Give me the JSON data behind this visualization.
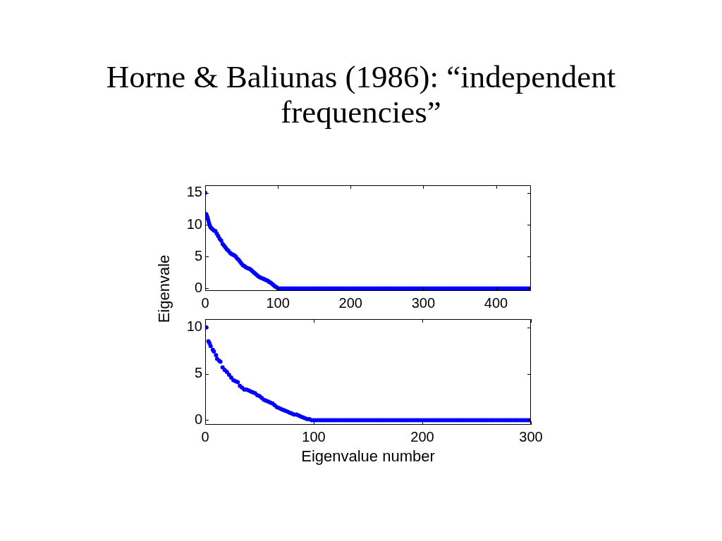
{
  "chart_data": [
    {
      "type": "scatter",
      "title": "Horne & Baliunas (1986): “independent frequencies”",
      "ylabel": "Eigenvale",
      "color": "#0000ff",
      "marker": "circle",
      "x": [
        0,
        1,
        2,
        3,
        4,
        5,
        6,
        7,
        8,
        10,
        12,
        14,
        16,
        18,
        20,
        22,
        24,
        26,
        28,
        30,
        32,
        34,
        36,
        38,
        40,
        42,
        44,
        46,
        48,
        50,
        52,
        54,
        56,
        58,
        60,
        62,
        64,
        66,
        68,
        70,
        72,
        74,
        76,
        78,
        80,
        82,
        84,
        86,
        88,
        90,
        92,
        94,
        96,
        98,
        100,
        103,
        106,
        109,
        112,
        115,
        118,
        121,
        124,
        127,
        130,
        133,
        136,
        139,
        142,
        145,
        148,
        151,
        154,
        157,
        160,
        163,
        166,
        169,
        172,
        175,
        178,
        181,
        184,
        187,
        190,
        193,
        196,
        199,
        202,
        205,
        208,
        211,
        214,
        217,
        220,
        223,
        226,
        229,
        232,
        235,
        238,
        241,
        244,
        247,
        250,
        253,
        256,
        259,
        262,
        265,
        268,
        271,
        274,
        277,
        280,
        283,
        286,
        289,
        292,
        295,
        298,
        301,
        304,
        307,
        310,
        313,
        316,
        319,
        322,
        325,
        328,
        331,
        334,
        337,
        340,
        343,
        346,
        349,
        352,
        355,
        358,
        361,
        364,
        367,
        370,
        373,
        376,
        379,
        382,
        385,
        388,
        391,
        394,
        397,
        400,
        403,
        406,
        409,
        412,
        415,
        418,
        421,
        424,
        427,
        430,
        433,
        436,
        439,
        442,
        445,
        448
      ],
      "values": [
        15.0,
        11.7,
        11.5,
        11.2,
        10.8,
        10.4,
        10.0,
        9.7,
        9.5,
        9.3,
        9.1,
        9.0,
        8.6,
        8.2,
        7.8,
        7.5,
        7.0,
        6.7,
        6.4,
        6.1,
        5.9,
        5.6,
        5.4,
        5.3,
        5.2,
        5.0,
        4.7,
        4.5,
        4.2,
        3.9,
        3.6,
        3.5,
        3.3,
        3.2,
        3.1,
        3.0,
        2.8,
        2.6,
        2.4,
        2.2,
        2.0,
        1.8,
        1.7,
        1.6,
        1.5,
        1.4,
        1.3,
        1.2,
        1.0,
        0.9,
        0.7,
        0.5,
        0.3,
        0.2,
        0,
        0,
        0,
        0,
        0,
        0,
        0,
        0,
        0,
        0,
        0,
        0,
        0,
        0,
        0,
        0,
        0,
        0,
        0,
        0,
        0,
        0,
        0,
        0,
        0,
        0,
        0,
        0,
        0,
        0,
        0,
        0,
        0,
        0,
        0,
        0,
        0,
        0,
        0,
        0,
        0,
        0,
        0,
        0,
        0,
        0,
        0,
        0,
        0,
        0,
        0,
        0,
        0,
        0,
        0,
        0,
        0,
        0,
        0,
        0,
        0,
        0,
        0,
        0,
        0,
        0,
        0,
        0,
        0,
        0,
        0,
        0,
        0,
        0,
        0,
        0,
        0,
        0,
        0,
        0,
        0,
        0,
        0,
        0,
        0,
        0,
        0,
        0,
        0,
        0,
        0,
        0,
        0,
        0,
        0,
        0,
        0,
        0,
        0,
        0,
        0,
        0,
        0,
        0,
        0,
        0,
        0,
        0,
        0,
        0,
        0,
        0,
        0,
        0,
        0,
        0,
        0
      ],
      "xlim": [
        0,
        448
      ],
      "xticks": [
        0,
        100,
        200,
        300,
        400
      ],
      "ylim": [
        -0.4,
        16.2
      ],
      "yticks": [
        0,
        5,
        10,
        15
      ]
    },
    {
      "type": "scatter",
      "xlabel": "Eigenvalue number",
      "color": "#0000ff",
      "marker": "circle",
      "x": [
        1,
        3,
        4,
        5,
        7,
        8,
        10,
        11,
        13,
        14,
        16,
        18,
        20,
        22,
        24,
        26,
        28,
        30,
        32,
        34,
        36,
        38,
        40,
        42,
        44,
        46,
        48,
        50,
        52,
        54,
        56,
        58,
        60,
        62,
        64,
        66,
        68,
        70,
        72,
        74,
        76,
        78,
        80,
        82,
        84,
        86,
        88,
        90,
        92,
        94,
        96,
        98,
        100,
        102,
        104,
        106,
        108,
        110,
        112,
        114,
        116,
        118,
        120,
        122,
        124,
        126,
        128,
        130,
        132,
        134,
        136,
        138,
        140,
        142,
        144,
        146,
        148,
        150,
        152,
        154,
        156,
        158,
        160,
        162,
        164,
        166,
        168,
        170,
        172,
        174,
        176,
        178,
        180,
        182,
        184,
        186,
        188,
        190,
        192,
        194,
        196,
        198,
        200,
        202,
        204,
        206,
        208,
        210,
        212,
        214,
        216,
        218,
        220,
        222,
        224,
        226,
        228,
        230,
        232,
        234,
        236,
        238,
        240,
        242,
        244,
        246,
        248,
        250,
        252,
        254,
        256,
        258,
        260,
        262,
        264,
        266,
        268,
        270,
        272,
        274,
        276,
        278,
        280,
        282,
        284,
        286,
        288,
        290,
        292,
        294,
        296,
        298,
        300
      ],
      "values": [
        10.0,
        8.5,
        8.3,
        8.0,
        7.6,
        7.4,
        7.0,
        6.6,
        6.4,
        6.3,
        5.7,
        5.4,
        5.2,
        4.9,
        4.6,
        4.3,
        4.2,
        4.1,
        3.7,
        3.5,
        3.3,
        3.3,
        3.2,
        3.1,
        3.0,
        2.9,
        2.7,
        2.6,
        2.4,
        2.2,
        2.1,
        2.0,
        1.9,
        1.8,
        1.6,
        1.4,
        1.3,
        1.2,
        1.1,
        1.0,
        0.9,
        0.8,
        0.7,
        0.6,
        0.6,
        0.5,
        0.4,
        0.3,
        0.2,
        0.1,
        0.1,
        0,
        0,
        0,
        0,
        0,
        0,
        0,
        0,
        0,
        0,
        0,
        0,
        0,
        0,
        0,
        0,
        0,
        0,
        0,
        0,
        0,
        0,
        0,
        0,
        0,
        0,
        0,
        0,
        0,
        0,
        0,
        0,
        0,
        0,
        0,
        0,
        0,
        0,
        0,
        0,
        0,
        0,
        0,
        0,
        0,
        0,
        0,
        0,
        0,
        0,
        0,
        0,
        0,
        0,
        0,
        0,
        0,
        0,
        0,
        0,
        0,
        0,
        0,
        0,
        0,
        0,
        0,
        0,
        0,
        0,
        0,
        0,
        0,
        0,
        0,
        0,
        0,
        0,
        0,
        0,
        0,
        0,
        0,
        0,
        0,
        0,
        0,
        0,
        0,
        0,
        0,
        0,
        0,
        0,
        0,
        0,
        0,
        0,
        0,
        0,
        0,
        0
      ],
      "xlim": [
        0,
        300
      ],
      "xticks": [
        0,
        100,
        200,
        300
      ],
      "ylim": [
        -0.5,
        10.9
      ],
      "yticks": [
        0,
        5,
        10
      ]
    }
  ]
}
